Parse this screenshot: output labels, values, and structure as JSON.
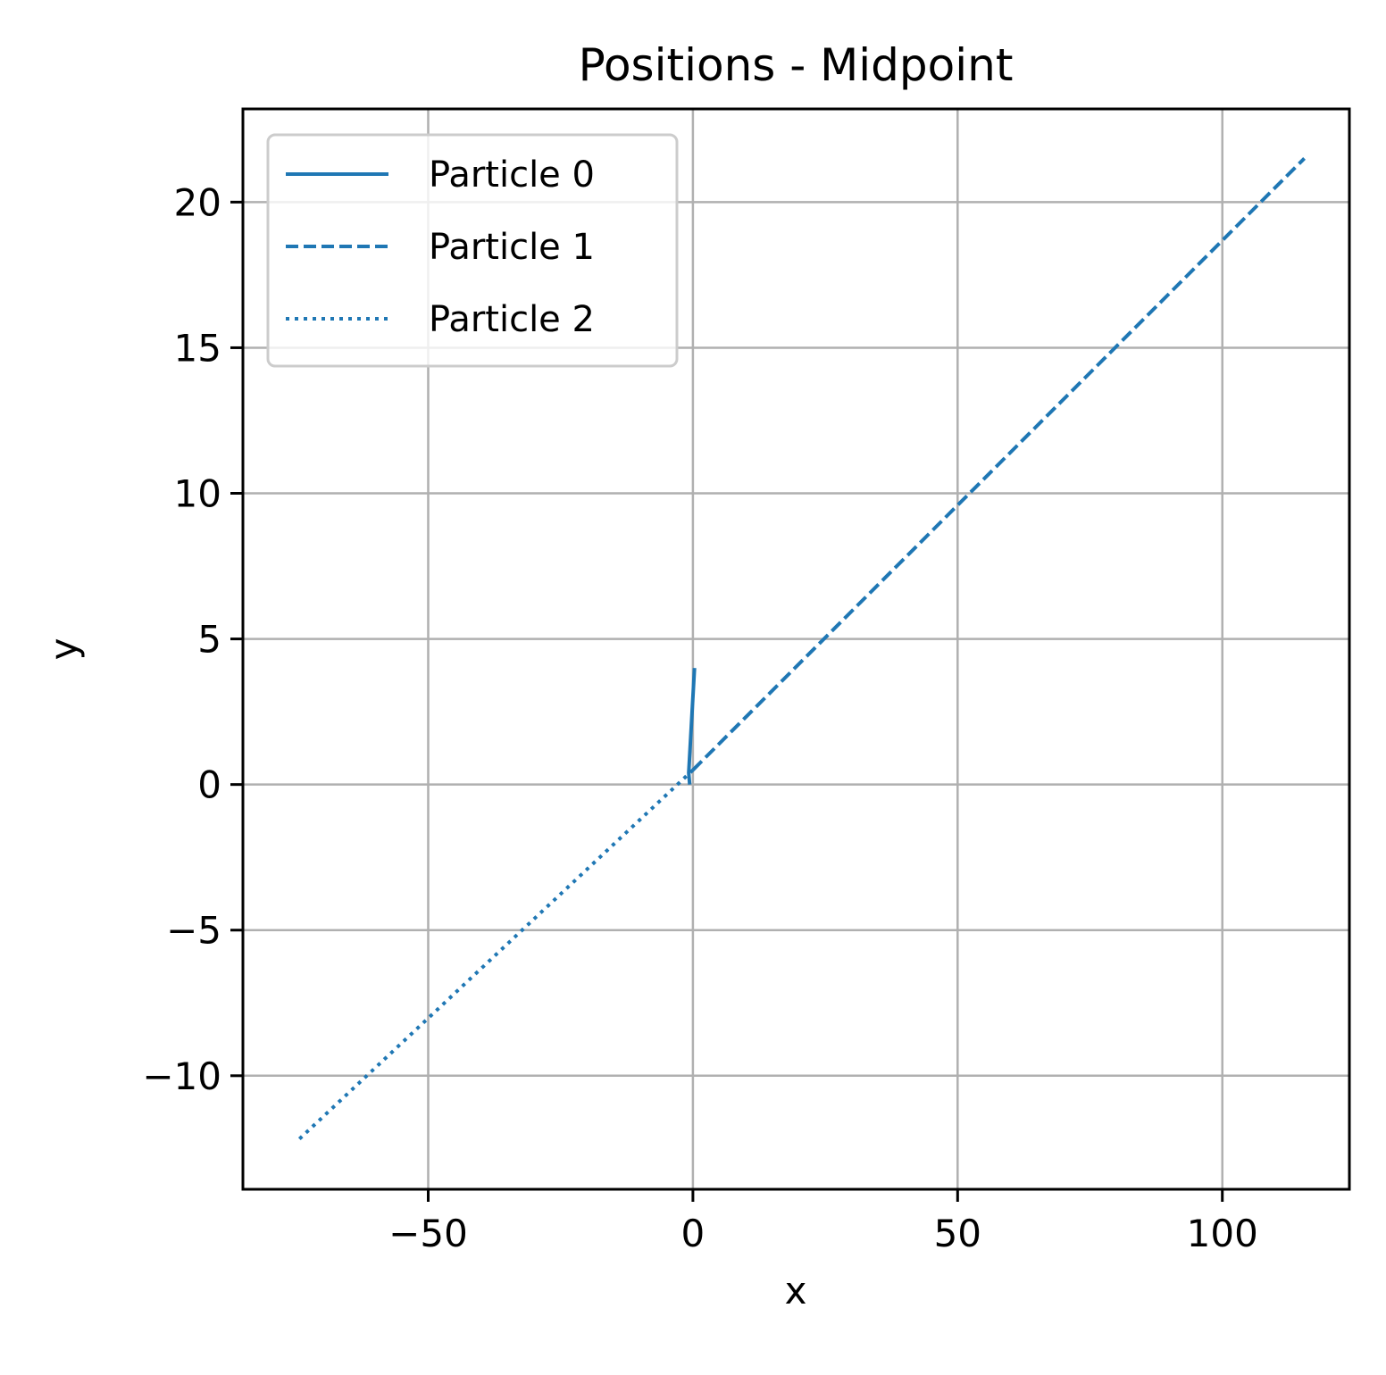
{
  "chart_data": {
    "type": "line",
    "title": "Positions - Midpoint",
    "xlabel": "x",
    "ylabel": "y",
    "xlim": [
      -85,
      124
    ],
    "ylim": [
      -13.9,
      23.2
    ],
    "xticks": [
      -50,
      0,
      50,
      100
    ],
    "xtick_labels": [
      "−50",
      "0",
      "50",
      "100"
    ],
    "yticks": [
      -10,
      -5,
      0,
      5,
      10,
      15,
      20
    ],
    "ytick_labels": [
      "−10",
      "−5",
      "0",
      "5",
      "10",
      "15",
      "20"
    ],
    "grid": true,
    "legend_position": "upper-left",
    "series": [
      {
        "name": "Particle 0",
        "style": "solid",
        "color": "#1f77b4",
        "x": [
          0.3,
          -0.8,
          -0.6
        ],
        "y": [
          4.0,
          0.4,
          0.0
        ]
      },
      {
        "name": "Particle 1",
        "style": "dashed",
        "color": "#1f77b4",
        "x": [
          0.0,
          115.5
        ],
        "y": [
          0.5,
          21.5
        ]
      },
      {
        "name": "Particle 2",
        "style": "dotted",
        "color": "#1f77b4",
        "x": [
          0.0,
          -74.5
        ],
        "y": [
          0.5,
          -12.2
        ]
      }
    ]
  }
}
